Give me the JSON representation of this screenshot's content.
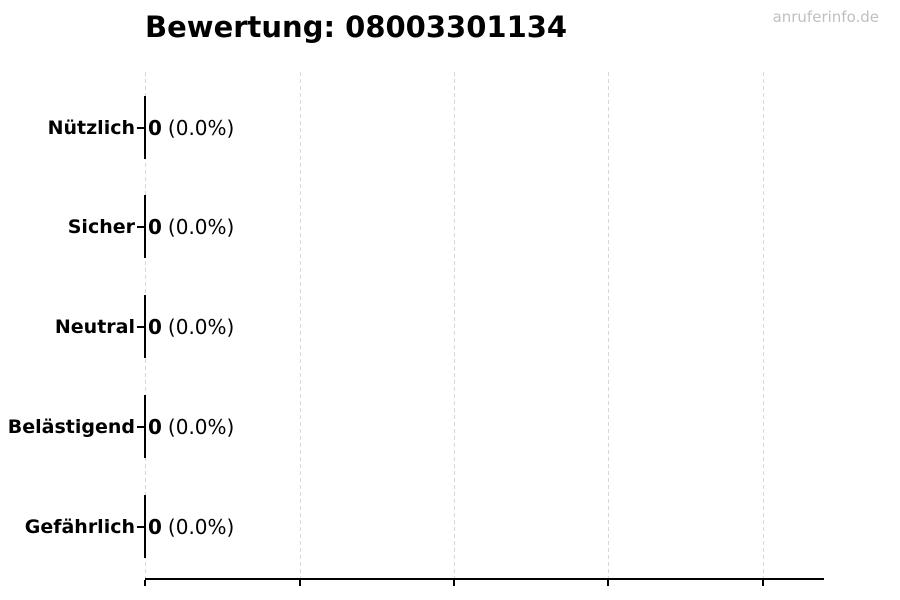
{
  "title": "Bewertung: 08003301134",
  "watermark": "anruferinfo.de",
  "colors": {
    "background": "#ffffff",
    "text": "#000000",
    "grid": "#d8d8d8",
    "axis": "#000000",
    "bar_edge": "#000000",
    "watermark": "#c0c0c0"
  },
  "chart_data": {
    "type": "bar",
    "orientation": "horizontal",
    "title": "Bewertung: 08003301134",
    "categories": [
      "Nützlich",
      "Sicher",
      "Neutral",
      "Belästigend",
      "Gefährlich"
    ],
    "values": [
      0,
      0,
      0,
      0,
      0
    ],
    "percent_labels": [
      "(0.0%)",
      "(0.0%)",
      "(0.0%)",
      "(0.0%)",
      "(0.0%)"
    ],
    "value_label_format": "count (percent)",
    "xlim": [
      0,
      4.4
    ],
    "xticks_count": 5,
    "xtick_labels_visible": false,
    "grid": "vertical dashed",
    "legend": "none"
  }
}
